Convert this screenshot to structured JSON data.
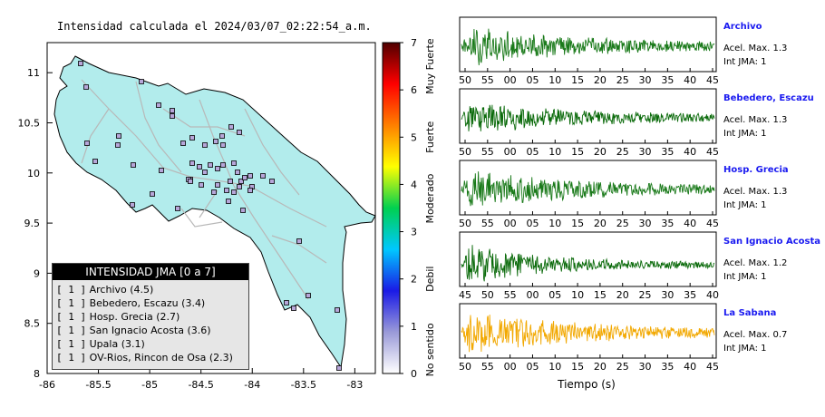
{
  "map": {
    "title": "Intensidad calculada el 2024/03/07_02:22:54_a.m.",
    "x_ticks": [
      "-86",
      "-85.5",
      "-85",
      "-84.5",
      "-84",
      "-83.5",
      "-83"
    ],
    "y_ticks": [
      "8",
      "8.5",
      "9",
      "9.5",
      "10",
      "10.5",
      "11"
    ],
    "xlim": [
      -86,
      -82.8
    ],
    "ylim": [
      8,
      11.3
    ],
    "land_color": "#b2ecec",
    "station_color": "#b7a6d9",
    "legend": {
      "title": "INTENSIDAD JMA [0 a 7]",
      "items": [
        {
          "bracket": "[ 1 ]",
          "label": "Archivo (4.5)"
        },
        {
          "bracket": "[ 1 ]",
          "label": "Bebedero, Escazu (3.4)"
        },
        {
          "bracket": "[ 1 ]",
          "label": "Hosp. Grecia (2.7)"
        },
        {
          "bracket": "[ 1 ]",
          "label": "San Ignacio Acosta (3.6)"
        },
        {
          "bracket": "[ 1 ]",
          "label": "Upala (3.1)"
        },
        {
          "bracket": "[ 1 ]",
          "label": "OV-Rios, Rincon de Osa (2.3)"
        }
      ]
    }
  },
  "colorbar": {
    "ticks": [
      "0",
      "1",
      "2",
      "3",
      "4",
      "5",
      "6",
      "7"
    ],
    "range": [
      0,
      7
    ],
    "categories": [
      "No sentido",
      "Debil",
      "Moderado",
      "Fuerte",
      "Muy Fuerte"
    ],
    "colors": [
      "#ffffff",
      "#9a9ad8",
      "#1a1ae6",
      "#00c8ff",
      "#00d050",
      "#ffff00",
      "#ff8000",
      "#ff0000",
      "#500000"
    ]
  },
  "waveforms": {
    "xlabel": "Tiempo (s)",
    "panels": [
      {
        "title": "Archivo",
        "acel": "Acel. Max. 1.3",
        "int": "Int JMA: 1",
        "color": "#1a7a1a",
        "ticks": [
          "50",
          "55",
          "00",
          "05",
          "10",
          "15",
          "20",
          "25",
          "30",
          "35",
          "40",
          "45"
        ]
      },
      {
        "title": "Bebedero, Escazu",
        "acel": "Acel. Max. 1.3",
        "int": "Int JMA: 1",
        "color": "#0a6a0a",
        "ticks": [
          "50",
          "55",
          "00",
          "05",
          "10",
          "15",
          "20",
          "25",
          "30",
          "35",
          "40",
          "45"
        ]
      },
      {
        "title": "Hosp. Grecia",
        "acel": "Acel. Max. 1.3",
        "int": "Int JMA: 1",
        "color": "#1a7a1a",
        "ticks": [
          "50",
          "55",
          "00",
          "05",
          "10",
          "15",
          "20",
          "25",
          "30",
          "35",
          "40",
          "45"
        ]
      },
      {
        "title": "San Ignacio Acosta",
        "acel": "Acel. Max. 1.2",
        "int": "Int JMA: 1",
        "color": "#0a6a0a",
        "ticks": [
          "45",
          "50",
          "55",
          "00",
          "05",
          "10",
          "15",
          "20",
          "25",
          "30",
          "35",
          "40"
        ]
      },
      {
        "title": "La Sabana",
        "acel": "Acel. Max. 0.7",
        "int": "Int JMA: 1",
        "color": "#f2a800",
        "ticks": [
          "50",
          "55",
          "00",
          "05",
          "10",
          "15",
          "20",
          "25",
          "30",
          "35",
          "40",
          "45"
        ]
      }
    ]
  }
}
